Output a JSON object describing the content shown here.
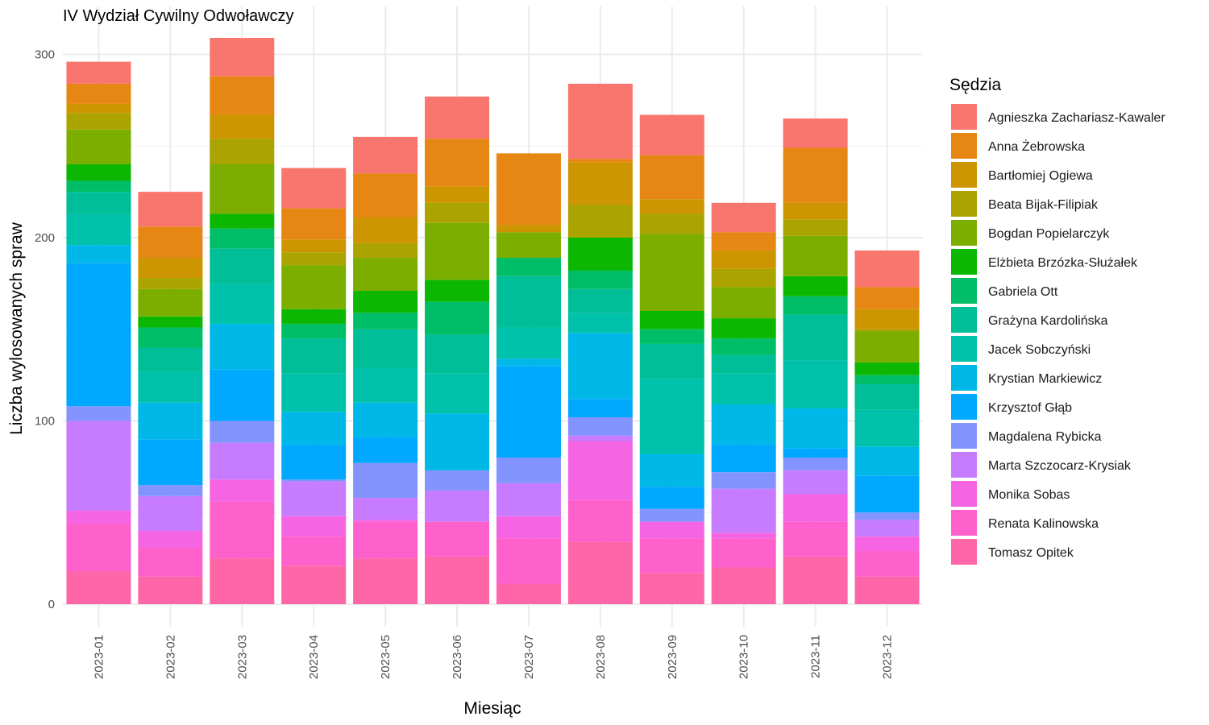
{
  "chart_data": {
    "type": "bar",
    "stacked": true,
    "title": "IV Wydział Cywilny Odwoławczy",
    "xlabel": "Miesiąc",
    "ylabel": "Liczba wylosowanych spraw",
    "ylim": [
      0,
      310
    ],
    "yticks": [
      0,
      100,
      200,
      300
    ],
    "grid": true,
    "legend": {
      "title": "Sędzia",
      "placement": "right"
    },
    "categories": [
      "2023-01",
      "2023-02",
      "2023-03",
      "2023-04",
      "2023-05",
      "2023-06",
      "2023-07",
      "2023-08",
      "2023-09",
      "2023-10",
      "2023-11",
      "2023-12"
    ],
    "series": [
      {
        "name": "Tomasz Opitek",
        "color": "#FF66A8",
        "values": [
          18,
          15,
          25,
          21,
          25,
          26,
          11,
          34,
          17,
          20,
          26,
          15
        ]
      },
      {
        "name": "Renata Kalinowska",
        "color": "#FF61CC",
        "values": [
          26,
          16,
          31,
          16,
          20,
          19,
          25,
          23,
          19,
          16,
          19,
          14
        ]
      },
      {
        "name": "Monika Sobas",
        "color": "#F564E3",
        "values": [
          7,
          9,
          12,
          11,
          1,
          0,
          12,
          32,
          9,
          3,
          15,
          8
        ]
      },
      {
        "name": "Marta Szczocarz-Krysiak",
        "color": "#C77CFF",
        "values": [
          49,
          19,
          20,
          19,
          12,
          17,
          18,
          3,
          0,
          24,
          13,
          9
        ]
      },
      {
        "name": "Magdalena Rybicka",
        "color": "#8494FF",
        "values": [
          8,
          6,
          12,
          1,
          19,
          11,
          14,
          10,
          7,
          9,
          7,
          4
        ]
      },
      {
        "name": "Krzysztof Głąb",
        "color": "#00A9FF",
        "values": [
          78,
          25,
          28,
          19,
          14,
          0,
          50,
          10,
          12,
          15,
          5,
          20
        ]
      },
      {
        "name": "Krystian Markiewicz",
        "color": "#00B8E7",
        "values": [
          10,
          20,
          25,
          18,
          19,
          31,
          4,
          36,
          18,
          22,
          22,
          16
        ]
      },
      {
        "name": "Jacek Sobczyński",
        "color": "#00C1AA",
        "values": [
          17,
          17,
          22,
          21,
          19,
          22,
          17,
          11,
          41,
          17,
          26,
          20
        ]
      },
      {
        "name": "Grażyna Kardolińska",
        "color": "#00BE98",
        "values": [
          12,
          13,
          19,
          19,
          21,
          21,
          28,
          13,
          19,
          10,
          25,
          14
        ]
      },
      {
        "name": "Gabriela Ott",
        "color": "#00BE67",
        "values": [
          6,
          11,
          11,
          8,
          9,
          18,
          10,
          10,
          8,
          9,
          10,
          5
        ]
      },
      {
        "name": "Elżbieta Brzózka-Służałek",
        "color": "#0CB702",
        "values": [
          9,
          6,
          8,
          8,
          12,
          12,
          0,
          18,
          10,
          11,
          11,
          7
        ]
      },
      {
        "name": "Bogdan Popielarczyk",
        "color": "#7CAE00",
        "values": [
          19,
          15,
          27,
          24,
          18,
          31,
          14,
          0,
          42,
          17,
          22,
          17
        ]
      },
      {
        "name": "Beata Bijak-Filipiak",
        "color": "#ABA300",
        "values": [
          9,
          6,
          14,
          7,
          8,
          11,
          0,
          18,
          11,
          10,
          9,
          1
        ]
      },
      {
        "name": "Bartłomiej Ogiewa",
        "color": "#CD9600",
        "values": [
          5,
          11,
          13,
          7,
          14,
          9,
          4,
          23,
          8,
          10,
          9,
          11
        ]
      },
      {
        "name": "Anna Żebrowska",
        "color": "#E68613",
        "values": [
          11,
          17,
          21,
          17,
          24,
          26,
          39,
          2,
          24,
          10,
          30,
          12
        ]
      },
      {
        "name": "Agnieszka Zachariasz-Kawaler",
        "color": "#F8766D",
        "values": [
          12,
          19,
          21,
          22,
          20,
          23,
          0,
          41,
          22,
          16,
          16,
          20
        ]
      }
    ]
  }
}
